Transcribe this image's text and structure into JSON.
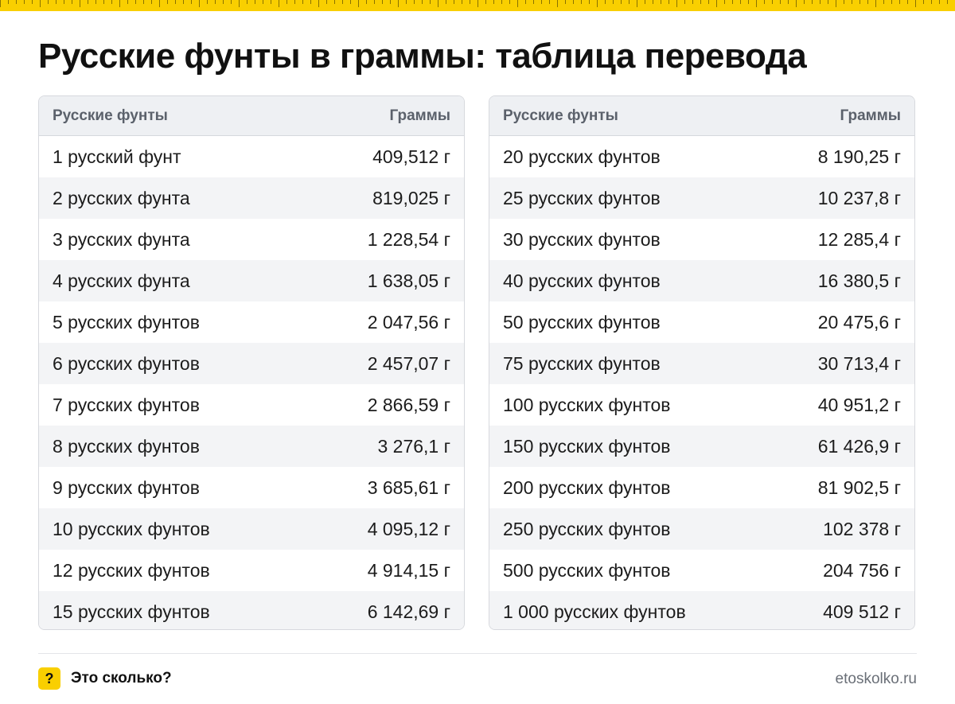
{
  "title": "Русские фунты в граммы: таблица перевода",
  "accent_color": "#f9cf00",
  "tables": [
    {
      "header": {
        "col1": "Русские фунты",
        "col2": "Граммы"
      },
      "rows": [
        {
          "label": "1 русский фунт",
          "value": "409,512 г"
        },
        {
          "label": "2 русских фунта",
          "value": "819,025 г"
        },
        {
          "label": "3 русских фунта",
          "value": "1 228,54 г"
        },
        {
          "label": "4 русских фунта",
          "value": "1 638,05 г"
        },
        {
          "label": "5 русских фунтов",
          "value": "2 047,56 г"
        },
        {
          "label": "6 русских фунтов",
          "value": "2 457,07 г"
        },
        {
          "label": "7 русских фунтов",
          "value": "2 866,59 г"
        },
        {
          "label": "8 русских фунтов",
          "value": "3 276,1 г"
        },
        {
          "label": "9 русских фунтов",
          "value": "3 685,61 г"
        },
        {
          "label": "10 русских фунтов",
          "value": "4 095,12 г"
        },
        {
          "label": "12 русских фунтов",
          "value": "4 914,15 г"
        },
        {
          "label": "15 русских фунтов",
          "value": "6 142,69 г"
        }
      ]
    },
    {
      "header": {
        "col1": "Русские фунты",
        "col2": "Граммы"
      },
      "rows": [
        {
          "label": "20 русских фунтов",
          "value": "8 190,25 г"
        },
        {
          "label": "25 русских фунтов",
          "value": "10 237,8 г"
        },
        {
          "label": "30 русских фунтов",
          "value": "12 285,4 г"
        },
        {
          "label": "40 русских фунтов",
          "value": "16 380,5 г"
        },
        {
          "label": "50 русских фунтов",
          "value": "20 475,6 г"
        },
        {
          "label": "75 русских фунтов",
          "value": "30 713,4 г"
        },
        {
          "label": "100 русских фунтов",
          "value": "40 951,2 г"
        },
        {
          "label": "150 русских фунтов",
          "value": "61 426,9 г"
        },
        {
          "label": "200 русских фунтов",
          "value": "81 902,5 г"
        },
        {
          "label": "250 русских фунтов",
          "value": "102 378 г"
        },
        {
          "label": "500 русских фунтов",
          "value": "204 756 г"
        },
        {
          "label": "1 000 русских фунтов",
          "value": "409 512 г"
        }
      ]
    }
  ],
  "footer": {
    "badge_icon": "question-mark-icon",
    "badge_symbol": "?",
    "brand": "Это сколько?",
    "site": "etoskolko.ru"
  }
}
